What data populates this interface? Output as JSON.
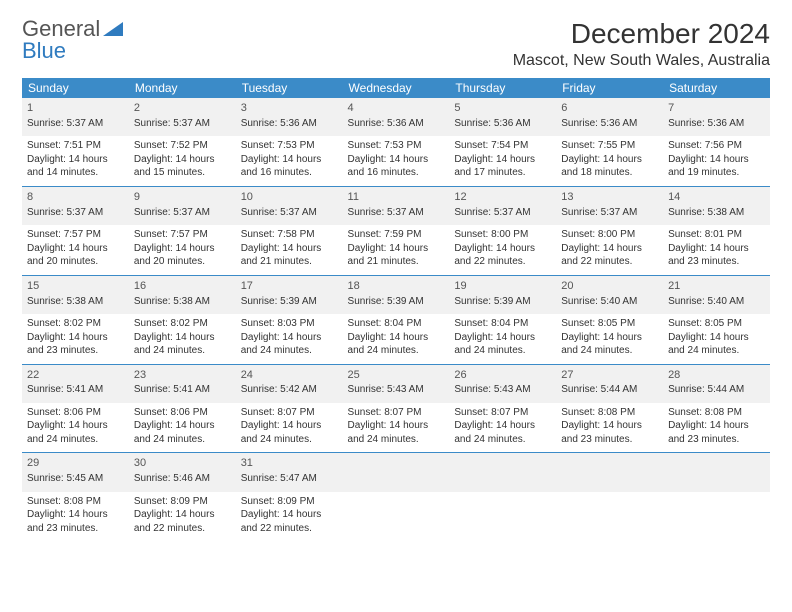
{
  "logo": {
    "text1": "General",
    "text2": "Blue"
  },
  "title": "December 2024",
  "location": "Mascot, New South Wales, Australia",
  "dow": [
    "Sunday",
    "Monday",
    "Tuesday",
    "Wednesday",
    "Thursday",
    "Friday",
    "Saturday"
  ],
  "colors": {
    "header_bg": "#3b8bc8",
    "header_text": "#ffffff",
    "shaded_bg": "#f1f1f1",
    "rule": "#3b8bc8",
    "logo_gray": "#555555",
    "logo_blue": "#2f7bbf"
  },
  "weeks": [
    [
      {
        "n": "1",
        "sr": "5:37 AM",
        "ss": "7:51 PM",
        "dl": "14 hours and 14 minutes."
      },
      {
        "n": "2",
        "sr": "5:37 AM",
        "ss": "7:52 PM",
        "dl": "14 hours and 15 minutes."
      },
      {
        "n": "3",
        "sr": "5:36 AM",
        "ss": "7:53 PM",
        "dl": "14 hours and 16 minutes."
      },
      {
        "n": "4",
        "sr": "5:36 AM",
        "ss": "7:53 PM",
        "dl": "14 hours and 16 minutes."
      },
      {
        "n": "5",
        "sr": "5:36 AM",
        "ss": "7:54 PM",
        "dl": "14 hours and 17 minutes."
      },
      {
        "n": "6",
        "sr": "5:36 AM",
        "ss": "7:55 PM",
        "dl": "14 hours and 18 minutes."
      },
      {
        "n": "7",
        "sr": "5:36 AM",
        "ss": "7:56 PM",
        "dl": "14 hours and 19 minutes."
      }
    ],
    [
      {
        "n": "8",
        "sr": "5:37 AM",
        "ss": "7:57 PM",
        "dl": "14 hours and 20 minutes."
      },
      {
        "n": "9",
        "sr": "5:37 AM",
        "ss": "7:57 PM",
        "dl": "14 hours and 20 minutes."
      },
      {
        "n": "10",
        "sr": "5:37 AM",
        "ss": "7:58 PM",
        "dl": "14 hours and 21 minutes."
      },
      {
        "n": "11",
        "sr": "5:37 AM",
        "ss": "7:59 PM",
        "dl": "14 hours and 21 minutes."
      },
      {
        "n": "12",
        "sr": "5:37 AM",
        "ss": "8:00 PM",
        "dl": "14 hours and 22 minutes."
      },
      {
        "n": "13",
        "sr": "5:37 AM",
        "ss": "8:00 PM",
        "dl": "14 hours and 22 minutes."
      },
      {
        "n": "14",
        "sr": "5:38 AM",
        "ss": "8:01 PM",
        "dl": "14 hours and 23 minutes."
      }
    ],
    [
      {
        "n": "15",
        "sr": "5:38 AM",
        "ss": "8:02 PM",
        "dl": "14 hours and 23 minutes."
      },
      {
        "n": "16",
        "sr": "5:38 AM",
        "ss": "8:02 PM",
        "dl": "14 hours and 24 minutes."
      },
      {
        "n": "17",
        "sr": "5:39 AM",
        "ss": "8:03 PM",
        "dl": "14 hours and 24 minutes."
      },
      {
        "n": "18",
        "sr": "5:39 AM",
        "ss": "8:04 PM",
        "dl": "14 hours and 24 minutes."
      },
      {
        "n": "19",
        "sr": "5:39 AM",
        "ss": "8:04 PM",
        "dl": "14 hours and 24 minutes."
      },
      {
        "n": "20",
        "sr": "5:40 AM",
        "ss": "8:05 PM",
        "dl": "14 hours and 24 minutes."
      },
      {
        "n": "21",
        "sr": "5:40 AM",
        "ss": "8:05 PM",
        "dl": "14 hours and 24 minutes."
      }
    ],
    [
      {
        "n": "22",
        "sr": "5:41 AM",
        "ss": "8:06 PM",
        "dl": "14 hours and 24 minutes."
      },
      {
        "n": "23",
        "sr": "5:41 AM",
        "ss": "8:06 PM",
        "dl": "14 hours and 24 minutes."
      },
      {
        "n": "24",
        "sr": "5:42 AM",
        "ss": "8:07 PM",
        "dl": "14 hours and 24 minutes."
      },
      {
        "n": "25",
        "sr": "5:43 AM",
        "ss": "8:07 PM",
        "dl": "14 hours and 24 minutes."
      },
      {
        "n": "26",
        "sr": "5:43 AM",
        "ss": "8:07 PM",
        "dl": "14 hours and 24 minutes."
      },
      {
        "n": "27",
        "sr": "5:44 AM",
        "ss": "8:08 PM",
        "dl": "14 hours and 23 minutes."
      },
      {
        "n": "28",
        "sr": "5:44 AM",
        "ss": "8:08 PM",
        "dl": "14 hours and 23 minutes."
      }
    ],
    [
      {
        "n": "29",
        "sr": "5:45 AM",
        "ss": "8:08 PM",
        "dl": "14 hours and 23 minutes."
      },
      {
        "n": "30",
        "sr": "5:46 AM",
        "ss": "8:09 PM",
        "dl": "14 hours and 22 minutes."
      },
      {
        "n": "31",
        "sr": "5:47 AM",
        "ss": "8:09 PM",
        "dl": "14 hours and 22 minutes."
      },
      null,
      null,
      null,
      null
    ]
  ],
  "labels": {
    "sunrise": "Sunrise:",
    "sunset": "Sunset:",
    "daylight": "Daylight:"
  }
}
